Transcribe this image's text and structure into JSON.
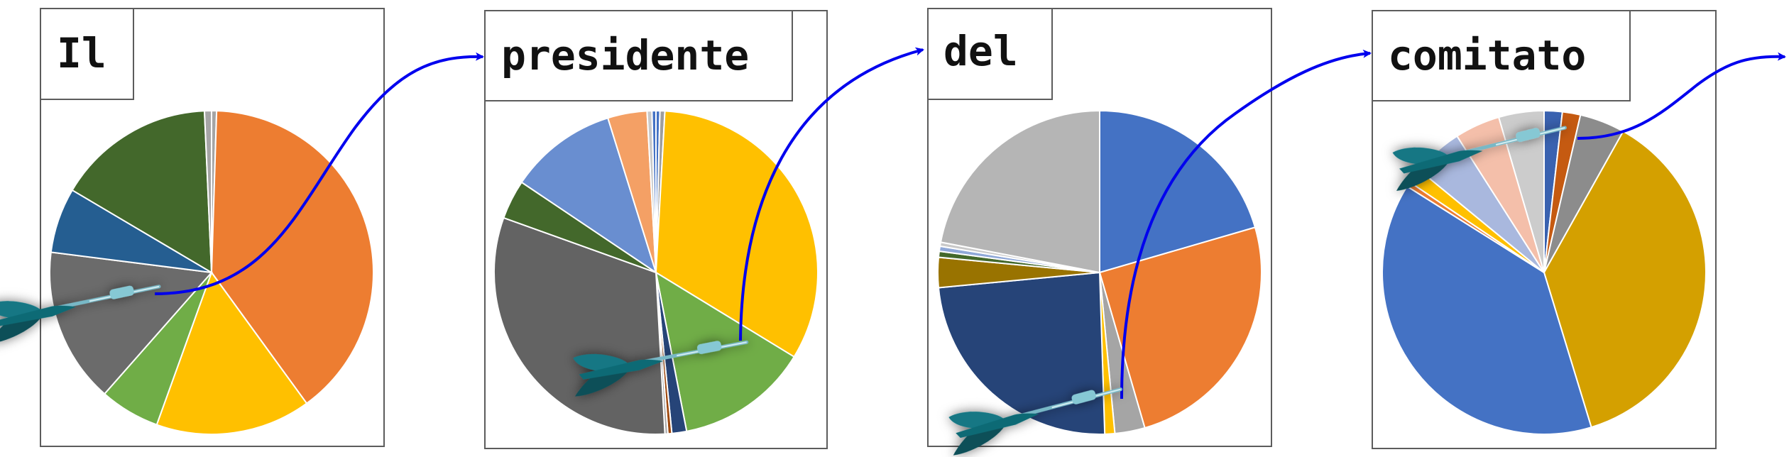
{
  "panels": [
    {
      "word": "Il",
      "slices": [
        {
          "value": 0.5,
          "color": "#a5a5a5"
        },
        {
          "value": 39.5,
          "color": "#ed7d31"
        },
        {
          "value": 15.5,
          "color": "#ffc000"
        },
        {
          "value": 6.0,
          "color": "#70ad47"
        },
        {
          "value": 15.5,
          "color": "#6b6b6b"
        },
        {
          "value": 6.5,
          "color": "#255e91"
        },
        {
          "value": 15.8,
          "color": "#43682b"
        },
        {
          "value": 0.7,
          "color": "#a5a5a5"
        }
      ]
    },
    {
      "word": "presidente",
      "slices": [
        {
          "value": 0.4,
          "color": "#4472c4"
        },
        {
          "value": 0.5,
          "color": "#9e9e9e"
        },
        {
          "value": 33.5,
          "color": "#ffc000"
        },
        {
          "value": 13.5,
          "color": "#70ad47"
        },
        {
          "value": 1.5,
          "color": "#264478"
        },
        {
          "value": 0.4,
          "color": "#9e480e"
        },
        {
          "value": 0.3,
          "color": "#a5a5a5"
        },
        {
          "value": 32.0,
          "color": "#636363"
        },
        {
          "value": 4.0,
          "color": "#43682b"
        },
        {
          "value": 11.0,
          "color": "#698ed0"
        },
        {
          "value": 4.0,
          "color": "#f4a065"
        },
        {
          "value": 0.5,
          "color": "#c9c9c9"
        },
        {
          "value": 0.4,
          "color": "#4472c4"
        }
      ]
    },
    {
      "word": "del",
      "slices": [
        {
          "value": 20.5,
          "color": "#4472c4"
        },
        {
          "value": 25.0,
          "color": "#ed7d31"
        },
        {
          "value": 3.0,
          "color": "#a5a5a5"
        },
        {
          "value": 1.0,
          "color": "#ffc000"
        },
        {
          "value": 24.0,
          "color": "#264478"
        },
        {
          "value": 3.0,
          "color": "#997300"
        },
        {
          "value": 0.6,
          "color": "#43682b"
        },
        {
          "value": 0.5,
          "color": "#8fa8d8"
        },
        {
          "value": 0.4,
          "color": "#c9c9c9"
        },
        {
          "value": 22.0,
          "color": "#b5b5b5"
        }
      ]
    },
    {
      "word": "comitato",
      "slices": [
        {
          "value": 1.8,
          "color": "#3a62b0"
        },
        {
          "value": 1.8,
          "color": "#c55a11"
        },
        {
          "value": 4.5,
          "color": "#8c8c8c"
        },
        {
          "value": 37.0,
          "color": "#d4a000"
        },
        {
          "value": 38.5,
          "color": "#4472c4"
        },
        {
          "value": 0.5,
          "color": "#ed7d31"
        },
        {
          "value": 1.5,
          "color": "#ffc000"
        },
        {
          "value": 5.0,
          "color": "#a9b8de"
        },
        {
          "value": 4.5,
          "color": "#f4bfaa"
        },
        {
          "value": 4.5,
          "color": "#cccccc"
        }
      ]
    }
  ]
}
